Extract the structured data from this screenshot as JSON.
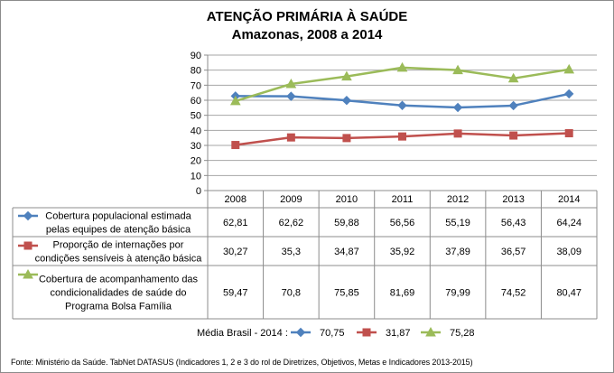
{
  "chart_data": {
    "type": "line",
    "title": "ATENÇÃO PRIMÁRIA À SAÚDE",
    "subtitle": "Amazonas, 2008 a 2014",
    "categories": [
      "2008",
      "2009",
      "2010",
      "2011",
      "2012",
      "2013",
      "2014"
    ],
    "ylim": [
      0,
      90
    ],
    "yticks": [
      "0",
      "10",
      "20",
      "30",
      "40",
      "50",
      "60",
      "70",
      "80",
      "90"
    ],
    "grid": true,
    "data_table": true,
    "series": [
      {
        "name_lines": [
          "Cobertura populacional estimada",
          "pelas equipes de atenção básica"
        ],
        "color": "#4f81bd",
        "marker": "diamond",
        "values": [
          62.81,
          62.62,
          59.88,
          56.56,
          55.19,
          56.43,
          64.24
        ],
        "labels": [
          "62,81",
          "62,62",
          "59,88",
          "56,56",
          "55,19",
          "56,43",
          "64,24"
        ]
      },
      {
        "name_lines": [
          "Proporção de internações por",
          "condições sensíveis à atenção básica"
        ],
        "color": "#c0504d",
        "marker": "square",
        "values": [
          30.27,
          35.3,
          34.87,
          35.92,
          37.89,
          36.57,
          38.09
        ],
        "labels": [
          "30,27",
          "35,3",
          "34,87",
          "35,92",
          "37,89",
          "36,57",
          "38,09"
        ]
      },
      {
        "name_lines": [
          "Cobertura de acompanhamento das",
          "condicionalidades de saúde do",
          "Programa Bolsa Família"
        ],
        "color": "#9bbb59",
        "marker": "triangle",
        "values": [
          59.47,
          70.8,
          75.85,
          81.69,
          79.99,
          74.52,
          80.47
        ],
        "labels": [
          "59,47",
          "70,8",
          "75,85",
          "81,69",
          "79,99",
          "74,52",
          "80,47"
        ]
      }
    ],
    "brasil_media": {
      "label": "Média Brasil - 2014 :",
      "values": [
        "70,75",
        "31,87",
        "75,28"
      ]
    },
    "source": "Fonte: Ministério da Saúde. TabNet DATASUS (Indicadores 1, 2 e 3 do rol de Diretrizes, Objetivos, Metas e Indicadores 2013-2015)"
  }
}
